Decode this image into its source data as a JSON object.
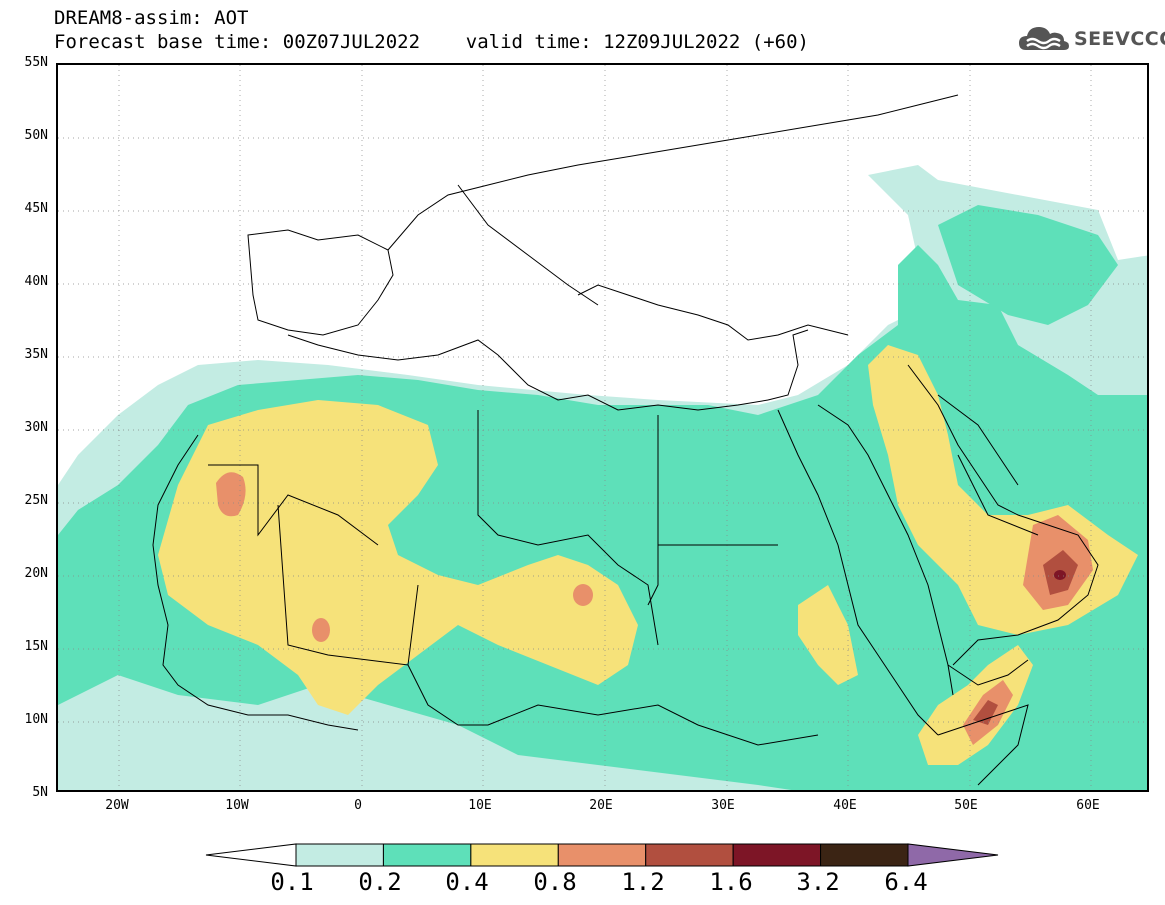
{
  "header": {
    "title_line1": "DREAM8-assim: AOT",
    "title_line2": "Forecast base time: 00Z07JUL2022    valid time: 12Z09JUL2022 (+60)"
  },
  "logo": {
    "text": "SEEVCCC",
    "icon": "cloud-icon"
  },
  "map": {
    "lat_ticks": [
      "55N",
      "50N",
      "45N",
      "40N",
      "35N",
      "30N",
      "25N",
      "20N",
      "15N",
      "10N",
      "5N"
    ],
    "lon_ticks": [
      "20W",
      "10W",
      "0",
      "10E",
      "20E",
      "30E",
      "40E",
      "50E",
      "60E"
    ],
    "background": "#ffffff",
    "border_color": "#000000"
  },
  "legend": {
    "levels": [
      "0.1",
      "0.2",
      "0.4",
      "0.8",
      "1.2",
      "1.6",
      "3.2",
      "6.4"
    ],
    "colors": [
      "#c3ece3",
      "#5ee0b9",
      "#f6e27a",
      "#e8906a",
      "#b14f3f",
      "#7d1526",
      "#3b2414",
      "#8f69a8"
    ],
    "under_color": "#ffffff"
  }
}
